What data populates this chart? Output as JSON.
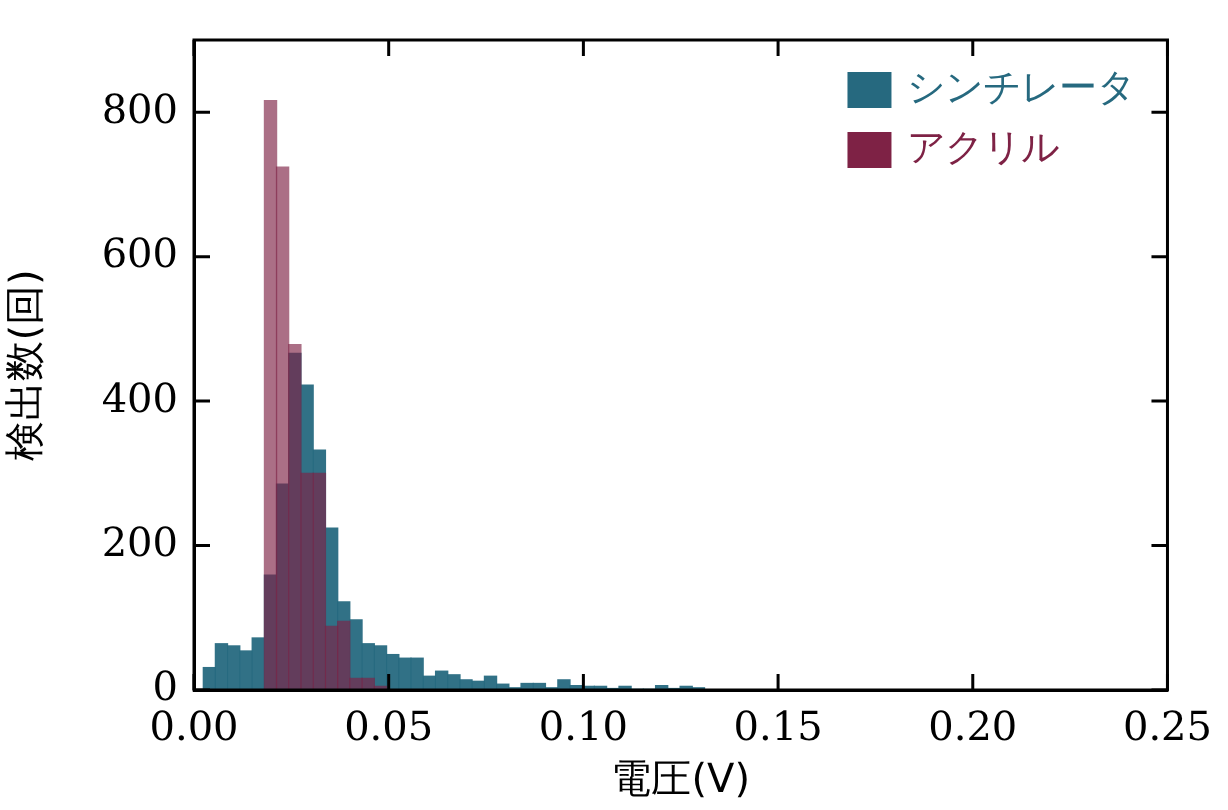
{
  "chart_data": {
    "type": "histogram",
    "xlabel": "電圧(V)",
    "ylabel": "検出数(回)",
    "bins": [
      0.0024,
      0.0055,
      0.0086,
      0.0118,
      0.0149,
      0.0181,
      0.0212,
      0.0243,
      0.0275,
      0.0306,
      0.0338,
      0.0369,
      0.04,
      0.0432,
      0.0463,
      0.0495,
      0.0526,
      0.0557,
      0.0589,
      0.062,
      0.0652,
      0.0683,
      0.0714,
      0.0746,
      0.0777,
      0.0809,
      0.084,
      0.0871,
      0.0903,
      0.0934,
      0.0966,
      0.0997,
      0.1028,
      0.106,
      0.1091,
      0.1123,
      0.1154,
      0.1185,
      0.1217,
      0.1248,
      0.128,
      0.1311
    ],
    "series": [
      {
        "name": "シンチレータ",
        "color": "#26697f",
        "values": [
          31,
          64,
          61,
          54,
          72,
          159,
          285,
          466,
          422,
          332,
          224,
          122,
          97,
          64,
          61,
          49,
          44,
          44,
          19,
          26,
          21,
          14,
          12,
          19,
          8,
          3,
          9,
          9,
          3,
          14,
          6,
          5,
          5,
          2,
          5,
          1,
          1,
          6,
          2,
          5,
          3
        ]
      },
      {
        "name": "アクリル",
        "color": "#7e2245",
        "values": [
          0,
          0,
          0,
          0,
          0,
          816,
          724,
          478,
          300,
          300,
          88,
          95,
          16,
          16,
          5,
          0,
          0,
          0,
          0,
          0,
          0,
          0,
          0,
          0,
          0,
          0,
          0,
          0,
          0,
          0,
          0,
          0,
          0,
          0,
          0,
          0,
          0,
          0,
          0,
          0,
          0
        ]
      }
    ],
    "xlim": [
      0,
      0.25
    ],
    "xticks": [
      {
        "value": 0,
        "label": "0.00"
      },
      {
        "value": 0.05,
        "label": "0.05"
      },
      {
        "value": 0.1,
        "label": "0.10"
      },
      {
        "value": 0.15,
        "label": "0.15"
      },
      {
        "value": 0.2,
        "label": "0.20"
      },
      {
        "value": 0.25,
        "label": "0.25"
      }
    ],
    "ylim": [
      0,
      900
    ],
    "yticks": [
      0,
      200,
      400,
      600,
      800
    ],
    "legend": "top right"
  }
}
